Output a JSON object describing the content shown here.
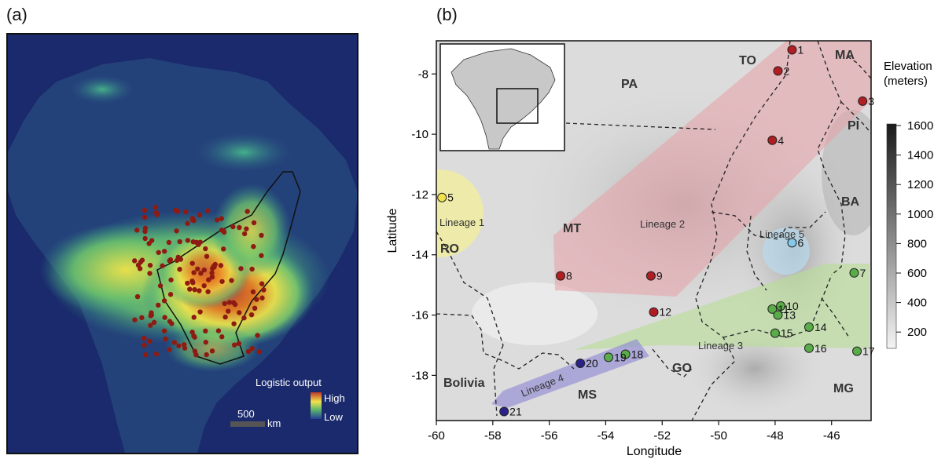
{
  "panel_a": {
    "label": "(a)",
    "legend_title": "Logistic output",
    "legend_high": "High",
    "legend_low": "Low",
    "scalebar_value": "500",
    "scalebar_unit": "km",
    "colors": {
      "ocean": "#1a2a6c",
      "low": "#24427a",
      "mid": "#3a9a8a",
      "high": "#f2e24a",
      "max": "#c0392b",
      "record": "#8e1b12"
    }
  },
  "panel_b": {
    "label": "(b)",
    "x_axis_label": "Longitude",
    "y_axis_label": "Latitude",
    "x_ticks": [
      "-60",
      "-58",
      "-56",
      "-54",
      "-52",
      "-50",
      "-48",
      "-46"
    ],
    "y_ticks": [
      "-8",
      "-10",
      "-12",
      "-14",
      "-16",
      "-18"
    ],
    "elevation_title_1": "Elevation",
    "elevation_title_2": "(meters)",
    "elevation_ticks": [
      "1600",
      "1400",
      "1200",
      "1000",
      "800",
      "600",
      "400",
      "200"
    ],
    "states": [
      "TO",
      "MA",
      "PA",
      "PI",
      "MT",
      "BA",
      "RO",
      "GO",
      "MS",
      "MG",
      "Bolivia"
    ],
    "lineages": [
      "Lineage 1",
      "Lineage 2",
      "Lineage 3",
      "Lineage 4",
      "Lineage 5"
    ],
    "lineage_colors": [
      "#f3ef9a",
      "#e8a0a8",
      "#b6dd95",
      "#8a86d6",
      "#b9dcee"
    ],
    "points": [
      {
        "id": "1",
        "lon": -47.4,
        "lat": -7.2,
        "lineage": 2
      },
      {
        "id": "2",
        "lon": -47.9,
        "lat": -7.9,
        "lineage": 2
      },
      {
        "id": "3",
        "lon": -44.9,
        "lat": -8.9,
        "lineage": 2
      },
      {
        "id": "4",
        "lon": -48.1,
        "lat": -10.2,
        "lineage": 2
      },
      {
        "id": "5",
        "lon": -59.8,
        "lat": -12.1,
        "lineage": 1
      },
      {
        "id": "6",
        "lon": -47.4,
        "lat": -13.6,
        "lineage": 5
      },
      {
        "id": "7",
        "lon": -45.2,
        "lat": -14.6,
        "lineage": 3
      },
      {
        "id": "8",
        "lon": -55.6,
        "lat": -14.7,
        "lineage": 2
      },
      {
        "id": "9",
        "lon": -52.4,
        "lat": -14.7,
        "lineage": 2
      },
      {
        "id": "10",
        "lon": -47.8,
        "lat": -15.7,
        "lineage": 3
      },
      {
        "id": "11",
        "lon": -48.1,
        "lat": -15.8,
        "lineage": 3
      },
      {
        "id": "12",
        "lon": -52.3,
        "lat": -15.9,
        "lineage": 2
      },
      {
        "id": "13",
        "lon": -47.9,
        "lat": -16.0,
        "lineage": 3
      },
      {
        "id": "14",
        "lon": -46.8,
        "lat": -16.4,
        "lineage": 3
      },
      {
        "id": "15",
        "lon": -48.0,
        "lat": -16.6,
        "lineage": 3
      },
      {
        "id": "16",
        "lon": -46.8,
        "lat": -17.1,
        "lineage": 3
      },
      {
        "id": "17",
        "lon": -45.1,
        "lat": -17.2,
        "lineage": 3
      },
      {
        "id": "18",
        "lon": -53.3,
        "lat": -17.3,
        "lineage": 3
      },
      {
        "id": "19",
        "lon": -53.9,
        "lat": -17.4,
        "lineage": 3
      },
      {
        "id": "20",
        "lon": -54.9,
        "lat": -17.6,
        "lineage": 4
      },
      {
        "id": "21",
        "lon": -57.6,
        "lat": -19.2,
        "lineage": 4
      }
    ],
    "point_colors": {
      "1": "#b01e24",
      "2": "#b01e24",
      "3": "#2a228a",
      "4": "#4fa63a",
      "5": "#7ec6e8"
    }
  }
}
